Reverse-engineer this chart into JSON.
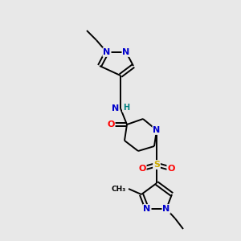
{
  "bg_color": "#e8e8e8",
  "atom_colors": {
    "C": "#000000",
    "N": "#0000cc",
    "O": "#ff0000",
    "S": "#ccaa00",
    "H": "#008080"
  },
  "bond_color": "#000000"
}
